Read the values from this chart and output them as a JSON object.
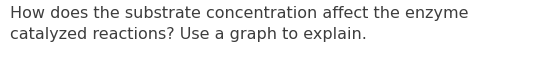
{
  "line1": "How does the substrate concentration affect the enzyme",
  "line2": "catalyzed reactions? Use a graph to explain.",
  "text_color": "#3d3d3d",
  "background_color": "#ffffff",
  "font_size": 11.5,
  "font_family": "DejaVu Sans"
}
